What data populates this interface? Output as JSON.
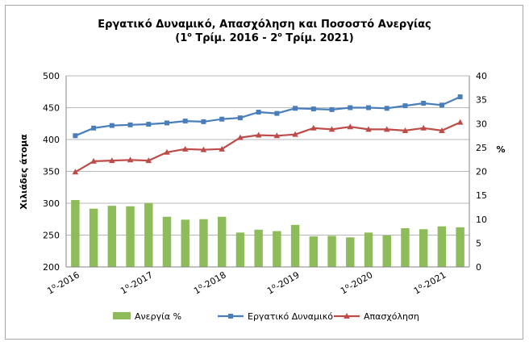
{
  "chart_data": {
    "type": "bar-line-combo",
    "title_line1": "Εργατικό Δυναμικό, Απασχόληση και Ποσοστό Ανεργίας",
    "title_line2_prefix": "(1",
    "title_line2_sup1": "ο",
    "title_line2_mid": " Τρίμ. 2016 - 2",
    "title_line2_sup2": "ο",
    "title_line2_suffix": " Τρίμ. 2021)",
    "ylabel_left": "Χιλιάδες άτομα",
    "ylabel_right": "%",
    "ylim_left": [
      200,
      500
    ],
    "yticks_left": [
      "200",
      "250",
      "300",
      "350",
      "400",
      "450",
      "500"
    ],
    "ylim_right": [
      0,
      40
    ],
    "yticks_right": [
      "0",
      "5",
      "10",
      "15",
      "20",
      "25",
      "30",
      "35",
      "40"
    ],
    "x_tick_labels": [
      {
        "index": 0,
        "year": "2016"
      },
      {
        "index": 4,
        "year": "2017"
      },
      {
        "index": 8,
        "year": "2018"
      },
      {
        "index": 12,
        "year": "2019"
      },
      {
        "index": 16,
        "year": "2020"
      },
      {
        "index": 20,
        "year": "2021"
      }
    ],
    "x_tick_prefix": "1",
    "x_tick_sup": "ο",
    "x_tick_sep": "-",
    "grid": true,
    "legend_position": "bottom",
    "series": [
      {
        "name": "Ανεργία %",
        "kind": "bar",
        "axis": "right",
        "color": "#8fbc5a",
        "values": [
          14.0,
          12.2,
          12.8,
          12.7,
          13.4,
          10.5,
          9.9,
          10.0,
          10.5,
          7.2,
          7.8,
          7.5,
          8.8,
          6.4,
          6.5,
          6.2,
          7.2,
          6.6,
          8.1,
          7.9,
          8.5,
          8.3
        ]
      },
      {
        "name": "Εργατικό Δυναμικό",
        "kind": "line",
        "axis": "left",
        "color": "#4a7ebb",
        "marker": "square",
        "values": [
          406,
          418,
          422,
          423,
          424,
          426,
          429,
          428,
          432,
          434,
          443,
          441,
          449,
          448,
          447,
          450,
          450,
          449,
          453,
          457,
          454,
          467
        ]
      },
      {
        "name": "Απασχόληση",
        "kind": "line",
        "axis": "left",
        "color": "#be4b48",
        "marker": "triangle",
        "values": [
          349,
          366,
          367,
          368,
          367,
          380,
          385,
          384,
          385,
          403,
          407,
          406,
          408,
          418,
          416,
          420,
          416,
          416,
          414,
          418,
          414,
          427
        ]
      }
    ]
  }
}
